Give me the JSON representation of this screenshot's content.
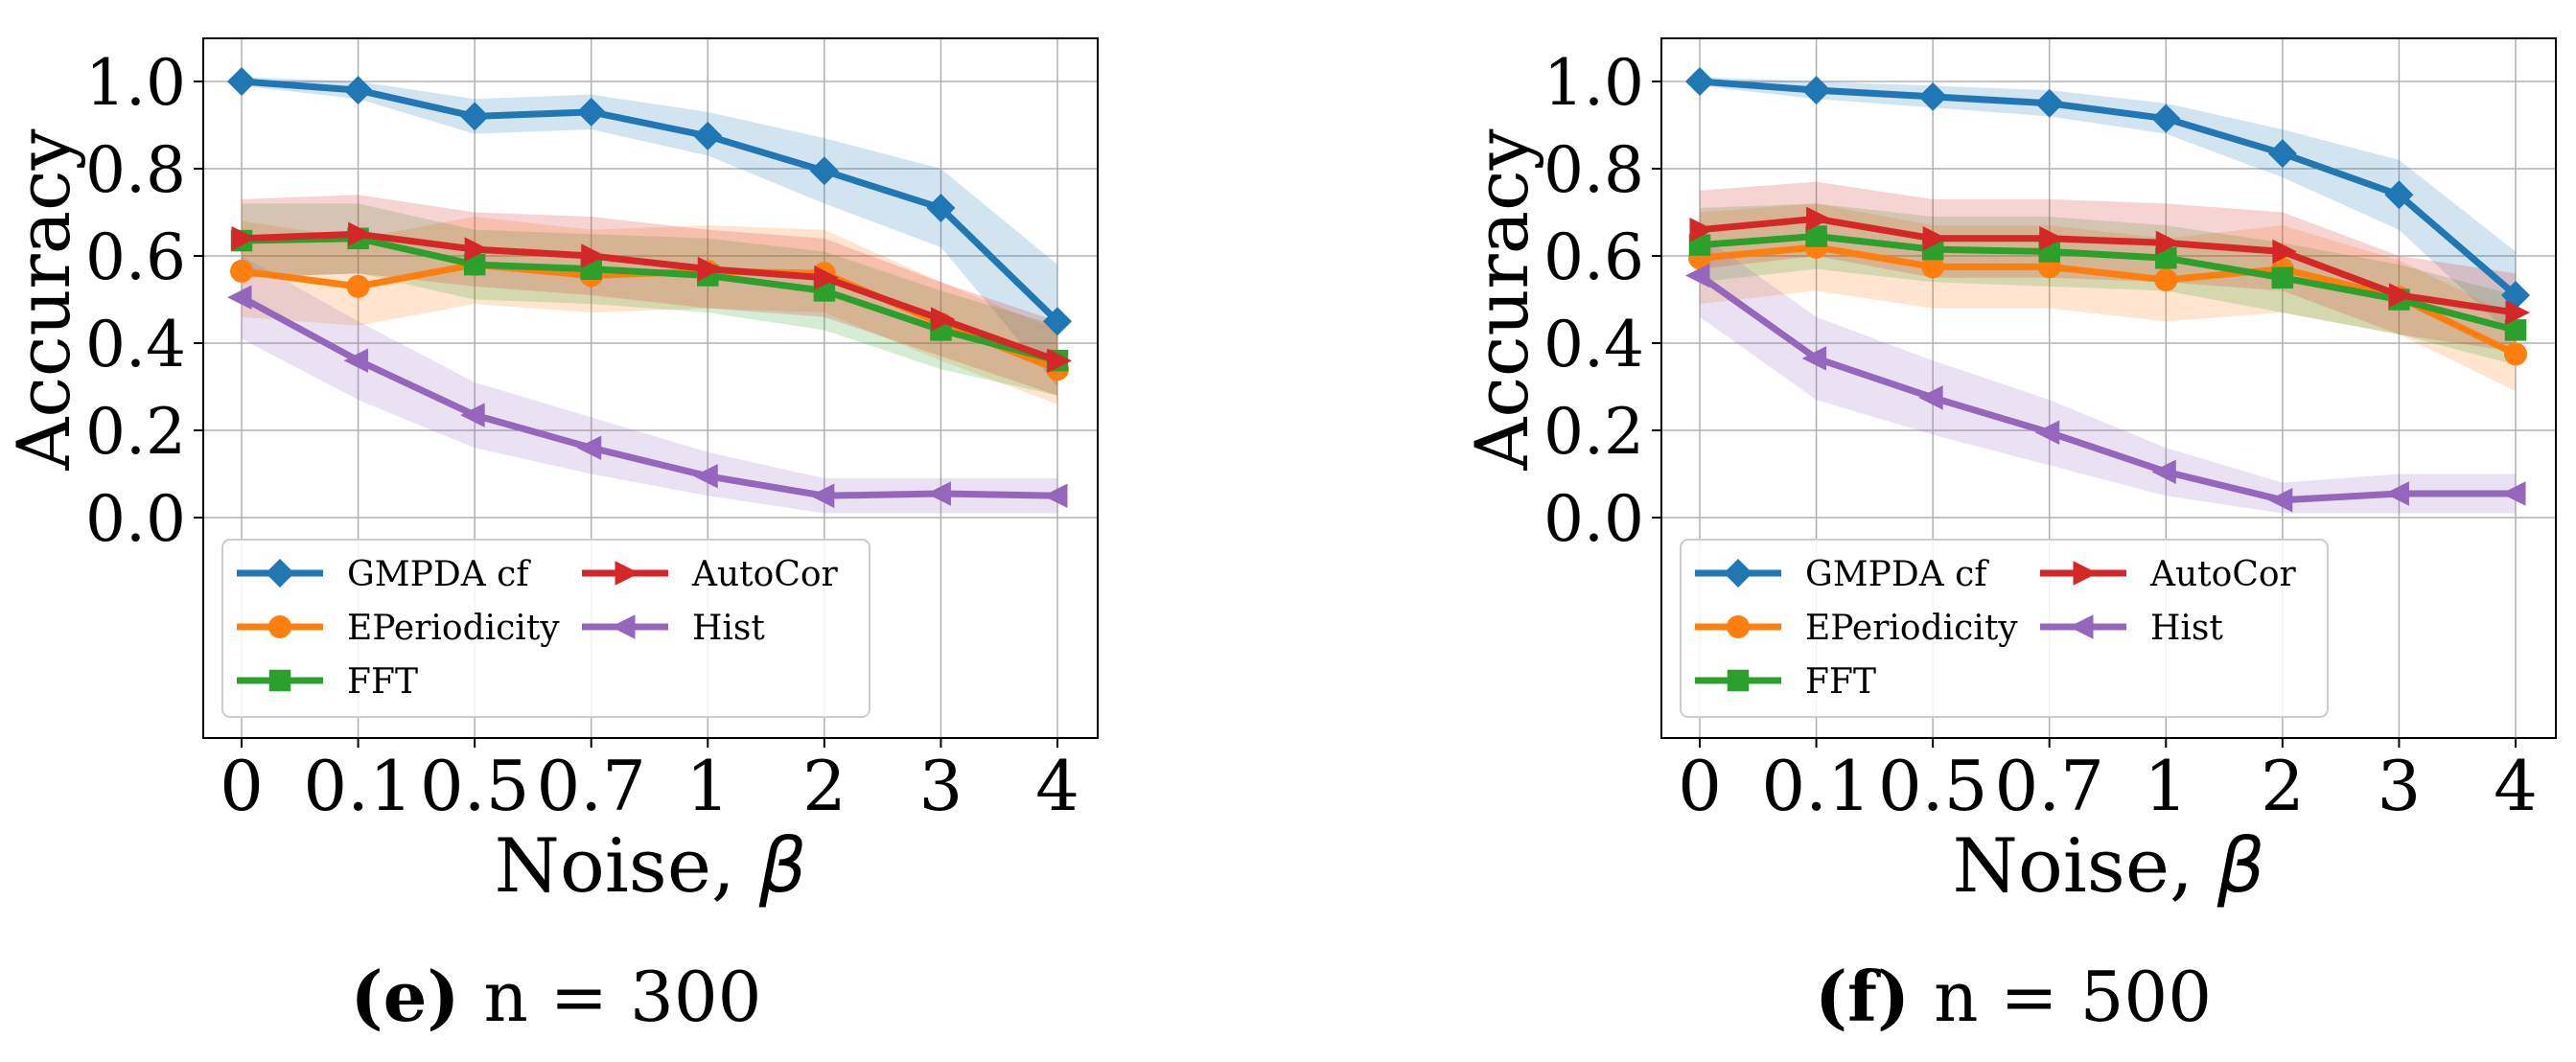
{
  "chart_data": [
    {
      "type": "line",
      "caption_letter": "(e)",
      "caption_rest": "n = 300",
      "xlabel": "Noise,",
      "xlabel_symbol": "β",
      "ylabel": "Accuracy",
      "categories": [
        "0",
        "0.1",
        "0.5",
        "0.7",
        "1",
        "2",
        "3",
        "4"
      ],
      "yticks": [
        "0.0",
        "0.2",
        "0.4",
        "0.6",
        "0.8",
        "1.0"
      ],
      "ylim": [
        -1.02,
        1.1
      ],
      "grid": true,
      "legend_position": "lower-left",
      "series": [
        {
          "name": "GMPDA cf",
          "color": "#1f77b4",
          "marker": "diamond",
          "values": [
            1.0,
            0.98,
            0.92,
            0.93,
            0.875,
            0.795,
            0.71,
            0.45
          ],
          "lower": [
            0.99,
            0.96,
            0.88,
            0.89,
            0.83,
            0.72,
            0.62,
            0.3
          ],
          "upper": [
            1.01,
            1.0,
            0.96,
            0.97,
            0.93,
            0.87,
            0.8,
            0.58
          ]
        },
        {
          "name": "EPeriodicity",
          "color": "#ff7f0e",
          "marker": "circle",
          "values": [
            0.565,
            0.53,
            0.58,
            0.555,
            0.565,
            0.56,
            0.445,
            0.34
          ],
          "lower": [
            0.46,
            0.44,
            0.49,
            0.47,
            0.48,
            0.47,
            0.36,
            0.26
          ],
          "upper": [
            0.68,
            0.64,
            0.69,
            0.66,
            0.67,
            0.66,
            0.54,
            0.43
          ]
        },
        {
          "name": "FFT",
          "color": "#2ca02c",
          "marker": "square",
          "values": [
            0.635,
            0.64,
            0.58,
            0.57,
            0.555,
            0.52,
            0.43,
            0.36
          ],
          "lower": [
            0.55,
            0.56,
            0.5,
            0.49,
            0.47,
            0.43,
            0.34,
            0.28
          ],
          "upper": [
            0.72,
            0.72,
            0.66,
            0.65,
            0.64,
            0.61,
            0.52,
            0.44
          ]
        },
        {
          "name": "AutoCor",
          "color": "#d62728",
          "marker": "triangle-right",
          "values": [
            0.64,
            0.65,
            0.615,
            0.6,
            0.57,
            0.55,
            0.455,
            0.36
          ],
          "lower": [
            0.55,
            0.56,
            0.53,
            0.51,
            0.48,
            0.46,
            0.37,
            0.28
          ],
          "upper": [
            0.73,
            0.74,
            0.7,
            0.69,
            0.66,
            0.64,
            0.54,
            0.45
          ]
        },
        {
          "name": "Hist",
          "color": "#9467bd",
          "marker": "triangle-left",
          "values": [
            0.505,
            0.36,
            0.235,
            0.16,
            0.095,
            0.05,
            0.055,
            0.05
          ],
          "lower": [
            0.41,
            0.27,
            0.16,
            0.1,
            0.05,
            0.01,
            0.01,
            0.01
          ],
          "upper": [
            0.6,
            0.45,
            0.31,
            0.23,
            0.15,
            0.09,
            0.09,
            0.09
          ]
        }
      ]
    },
    {
      "type": "line",
      "caption_letter": "(f)",
      "caption_rest": "n = 500",
      "xlabel": "Noise,",
      "xlabel_symbol": "β",
      "ylabel": "Accuracy",
      "categories": [
        "0",
        "0.1",
        "0.5",
        "0.7",
        "1",
        "2",
        "3",
        "4"
      ],
      "yticks": [
        "0.0",
        "0.2",
        "0.4",
        "0.6",
        "0.8",
        "1.0"
      ],
      "ylim": [
        -1.02,
        1.1
      ],
      "grid": true,
      "legend_position": "lower-left",
      "series": [
        {
          "name": "GMPDA cf",
          "color": "#1f77b4",
          "marker": "diamond",
          "values": [
            1.0,
            0.98,
            0.965,
            0.95,
            0.915,
            0.835,
            0.74,
            0.51
          ],
          "lower": [
            0.99,
            0.96,
            0.94,
            0.92,
            0.88,
            0.78,
            0.66,
            0.41
          ],
          "upper": [
            1.01,
            1.0,
            0.99,
            0.98,
            0.95,
            0.89,
            0.82,
            0.61
          ]
        },
        {
          "name": "EPeriodicity",
          "color": "#ff7f0e",
          "marker": "circle",
          "values": [
            0.595,
            0.62,
            0.575,
            0.575,
            0.545,
            0.57,
            0.505,
            0.375
          ],
          "lower": [
            0.49,
            0.52,
            0.48,
            0.48,
            0.45,
            0.47,
            0.42,
            0.29
          ],
          "upper": [
            0.7,
            0.72,
            0.67,
            0.67,
            0.64,
            0.67,
            0.59,
            0.46
          ]
        },
        {
          "name": "FFT",
          "color": "#2ca02c",
          "marker": "square",
          "values": [
            0.625,
            0.645,
            0.615,
            0.61,
            0.595,
            0.55,
            0.5,
            0.43
          ],
          "lower": [
            0.54,
            0.57,
            0.54,
            0.53,
            0.52,
            0.47,
            0.42,
            0.35
          ],
          "upper": [
            0.71,
            0.72,
            0.69,
            0.69,
            0.67,
            0.63,
            0.58,
            0.51
          ]
        },
        {
          "name": "AutoCor",
          "color": "#d62728",
          "marker": "triangle-right",
          "values": [
            0.66,
            0.685,
            0.64,
            0.64,
            0.63,
            0.61,
            0.51,
            0.47
          ],
          "lower": [
            0.57,
            0.6,
            0.55,
            0.55,
            0.54,
            0.52,
            0.42,
            0.38
          ],
          "upper": [
            0.75,
            0.77,
            0.73,
            0.73,
            0.72,
            0.7,
            0.6,
            0.56
          ]
        },
        {
          "name": "Hist",
          "color": "#9467bd",
          "marker": "triangle-left",
          "values": [
            0.555,
            0.365,
            0.275,
            0.195,
            0.105,
            0.04,
            0.055,
            0.055
          ],
          "lower": [
            0.46,
            0.27,
            0.19,
            0.12,
            0.05,
            0.01,
            0.01,
            0.01
          ],
          "upper": [
            0.65,
            0.46,
            0.36,
            0.27,
            0.16,
            0.08,
            0.1,
            0.1
          ]
        }
      ]
    }
  ]
}
